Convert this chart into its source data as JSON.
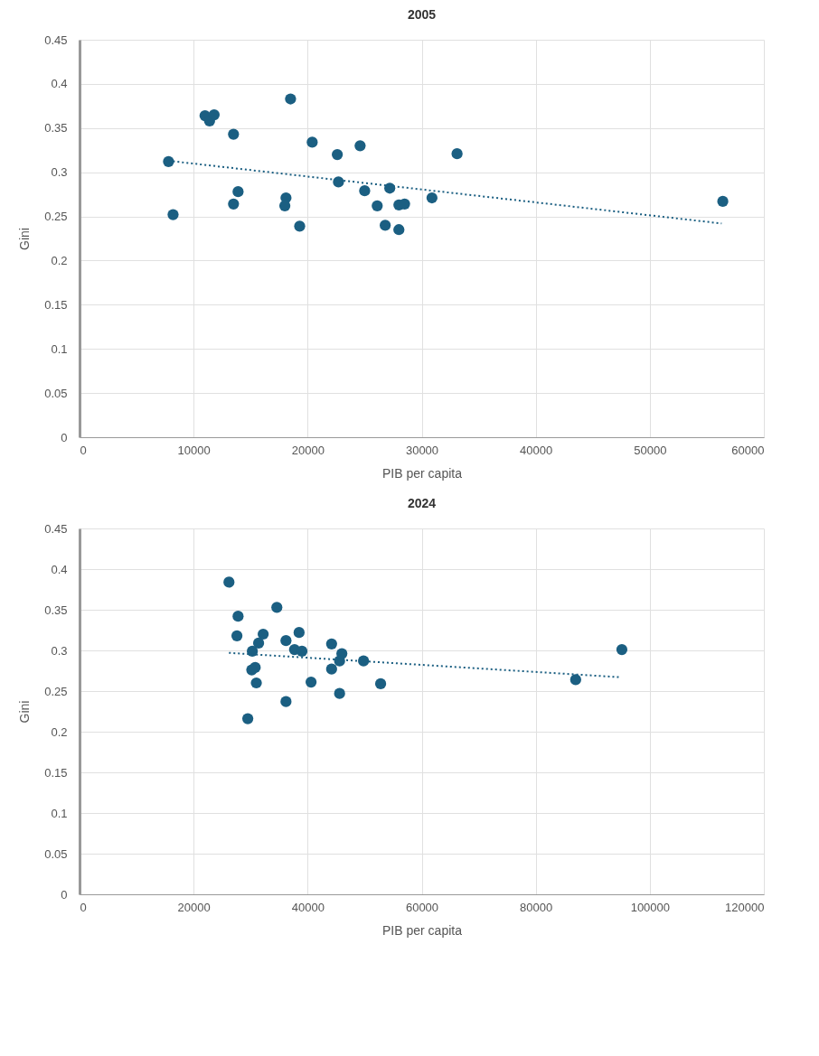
{
  "chart_data": [
    {
      "type": "scatter",
      "title": "2005",
      "xlabel": "PIB per capita",
      "ylabel": "Gini",
      "xlim": [
        0,
        60000
      ],
      "xticks": [
        0,
        10000,
        20000,
        30000,
        40000,
        50000,
        60000
      ],
      "ylim": [
        0,
        0.45
      ],
      "yticks": [
        0,
        0.05,
        0.1,
        0.15,
        0.2,
        0.25,
        0.3,
        0.35,
        0.4,
        0.45
      ],
      "grid": true,
      "series": [
        {
          "marker": "circle",
          "color": "#1b5f82",
          "x": [
            7800,
            8200,
            11000,
            11400,
            11800,
            13500,
            13500,
            13900,
            18500,
            18100,
            18000,
            19300,
            20400,
            22600,
            22700,
            24600,
            25000,
            27200,
            26100,
            26800,
            28000,
            28000,
            28500,
            30900,
            33100,
            56400
          ],
          "values": [
            0.312,
            0.252,
            0.364,
            0.358,
            0.365,
            0.343,
            0.264,
            0.278,
            0.383,
            0.271,
            0.262,
            0.239,
            0.334,
            0.32,
            0.289,
            0.33,
            0.279,
            0.282,
            0.262,
            0.24,
            0.235,
            0.263,
            0.264,
            0.271,
            0.321,
            0.267
          ]
        },
        {
          "type": "line",
          "color": "#1b5f82",
          "line_style": "dotted",
          "x": [
            7800,
            56300
          ],
          "values": [
            0.313,
            0.242
          ]
        }
      ]
    },
    {
      "type": "scatter",
      "title": "2024",
      "xlabel": "PIB per capita",
      "ylabel": "Gini",
      "xlim": [
        0,
        120000
      ],
      "xticks": [
        0,
        20000,
        40000,
        60000,
        80000,
        100000,
        120000
      ],
      "ylim": [
        0,
        0.45
      ],
      "yticks": [
        0,
        0.05,
        0.1,
        0.15,
        0.2,
        0.25,
        0.3,
        0.35,
        0.4,
        0.45
      ],
      "grid": true,
      "series": [
        {
          "marker": "circle",
          "color": "#1b5f82",
          "x": [
            26200,
            27800,
            27600,
            34600,
            32200,
            31400,
            30300,
            36200,
            38500,
            37700,
            39000,
            44200,
            46000,
            45600,
            44200,
            49800,
            30800,
            30200,
            31000,
            40600,
            52800,
            45600,
            36200,
            29500,
            87000,
            95100
          ],
          "values": [
            0.384,
            0.342,
            0.318,
            0.353,
            0.32,
            0.309,
            0.299,
            0.312,
            0.322,
            0.301,
            0.299,
            0.308,
            0.296,
            0.287,
            0.277,
            0.287,
            0.279,
            0.276,
            0.26,
            0.261,
            0.259,
            0.247,
            0.237,
            0.216,
            0.264,
            0.301
          ]
        },
        {
          "type": "line",
          "color": "#1b5f82",
          "line_style": "dotted",
          "x": [
            26200,
            94800
          ],
          "values": [
            0.297,
            0.267
          ]
        }
      ]
    }
  ]
}
